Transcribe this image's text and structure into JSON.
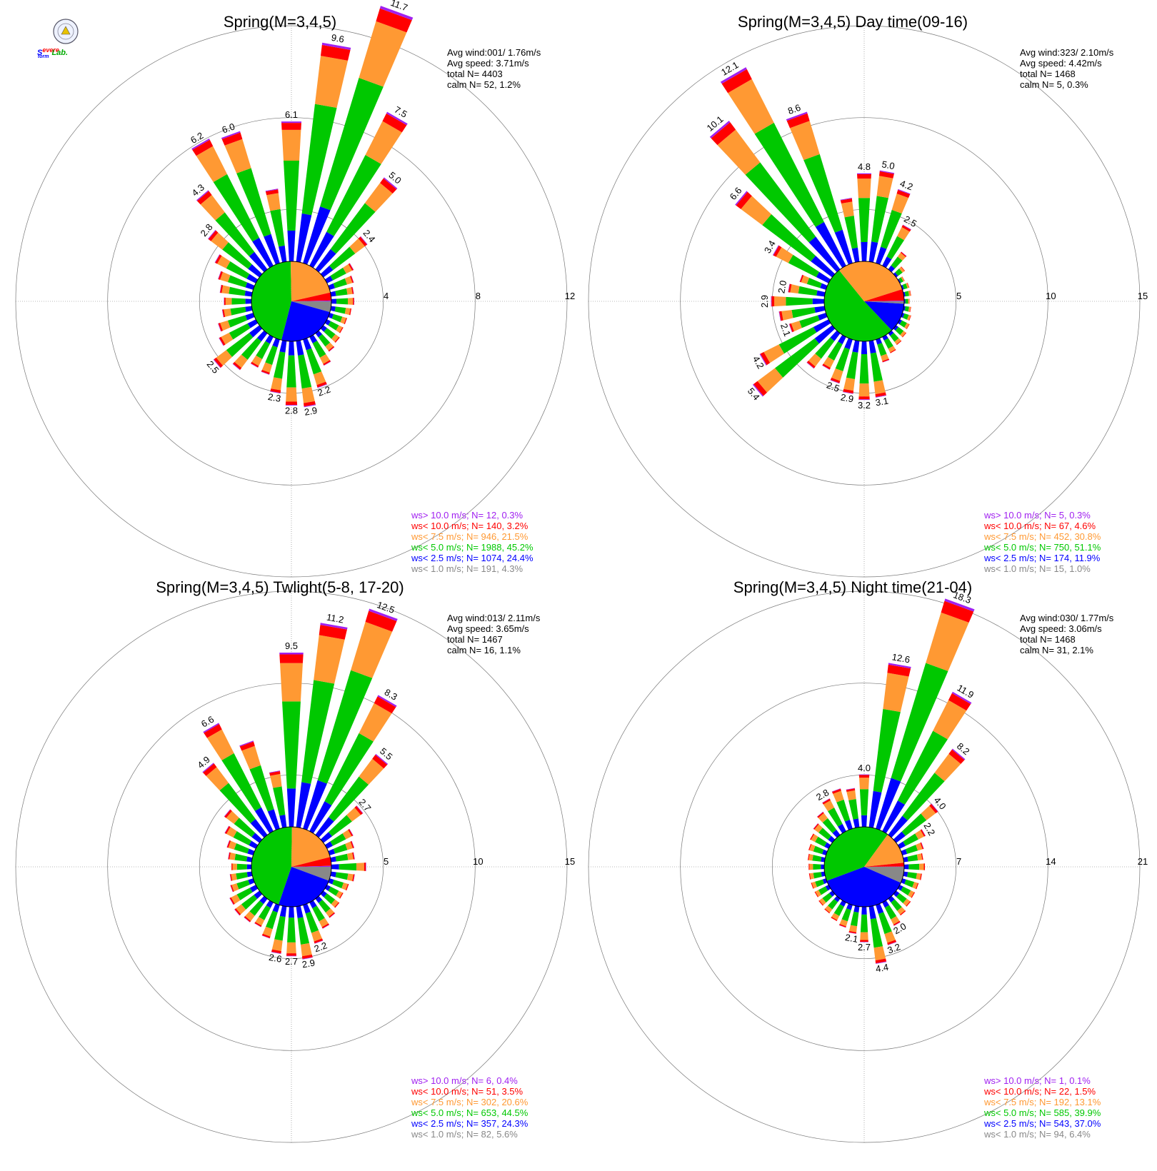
{
  "logo": {
    "text_s": "S",
    "text_severe": "evere",
    "text_storm": "torm",
    "text_lab": "Lab."
  },
  "chart_data": [
    {
      "type": "windrose",
      "title": "Spring(M=3,4,5)",
      "rmax": 12,
      "rings": [
        4,
        8,
        12
      ],
      "ring_labels": [
        "4",
        "8",
        "12"
      ],
      "stats": {
        "avg_wind": "Avg wind:001/ 1.76m/s",
        "avg_speed": "Avg speed: 3.71m/s",
        "total": "total N=       4403",
        "calm": "calm N=     52,   1.2%"
      },
      "directions": [
        0,
        10,
        20,
        30,
        40,
        50,
        60,
        70,
        80,
        90,
        100,
        110,
        120,
        130,
        140,
        150,
        160,
        170,
        180,
        190,
        200,
        210,
        220,
        230,
        240,
        250,
        260,
        270,
        280,
        290,
        300,
        310,
        320,
        330,
        340,
        350
      ],
      "totals": [
        6.1,
        9.6,
        11.7,
        7.5,
        5.0,
        2.4,
        1.3,
        1.1,
        1.0,
        1.0,
        0.9,
        0.8,
        0.8,
        0.9,
        1.0,
        1.4,
        2.2,
        2.9,
        2.8,
        2.3,
        1.6,
        1.5,
        2.0,
        2.5,
        1.8,
        1.6,
        1.3,
        1.2,
        1.4,
        1.6,
        2.0,
        2.8,
        4.3,
        6.2,
        6.0,
        3.2
      ],
      "labels": {
        "0": "6.1",
        "10": "9.6",
        "20": "11.7",
        "30": "7.5",
        "40": "5.0",
        "50": "2.4",
        "160": "2.2",
        "170": "2.9",
        "180": "2.8",
        "190": "2.3",
        "230": "2.5",
        "310": "2.8",
        "320": "4.3",
        "330": "6.2",
        "340": "6.0"
      },
      "pie": [
        4.3,
        24.4,
        45.2,
        21.5,
        3.2,
        0.3
      ],
      "legend": [
        {
          "text": "ws> 10.0 m/s; N=   12,  0.3%",
          "color": "#a020f0"
        },
        {
          "text": "ws< 10.0 m/s; N=  140,  3.2%",
          "color": "#ff0000"
        },
        {
          "text": "ws<  7.5 m/s; N=  946, 21.5%",
          "color": "#ff9933"
        },
        {
          "text": "ws<  5.0 m/s; N= 1988, 45.2%",
          "color": "#00c800"
        },
        {
          "text": "ws<  2.5 m/s; N= 1074, 24.4%",
          "color": "#0000ff"
        },
        {
          "text": "ws<  1.0 m/s; N=  191,  4.3%",
          "color": "#888888"
        }
      ]
    },
    {
      "type": "windrose",
      "title": "Spring(M=3,4,5) Day time(09-16)",
      "rmax": 15,
      "rings": [
        5,
        10,
        15
      ],
      "ring_labels": [
        "5",
        "10",
        "15"
      ],
      "stats": {
        "avg_wind": "Avg wind:323/ 2.10m/s",
        "avg_speed": "Avg speed: 4.42m/s",
        "total": "total N=       1468",
        "calm": "calm N=      5,   0.3%"
      },
      "directions": [
        0,
        10,
        20,
        30,
        40,
        50,
        60,
        70,
        80,
        90,
        100,
        110,
        120,
        130,
        140,
        150,
        160,
        170,
        180,
        190,
        200,
        210,
        220,
        230,
        240,
        250,
        260,
        270,
        280,
        290,
        300,
        310,
        320,
        330,
        340,
        350
      ],
      "totals": [
        4.8,
        5.0,
        4.2,
        2.5,
        1.2,
        0.6,
        0.3,
        0.4,
        0.4,
        0.3,
        0.4,
        0.5,
        0.6,
        0.7,
        0.8,
        1.0,
        1.3,
        3.1,
        3.2,
        2.9,
        2.5,
        2.0,
        2.4,
        5.4,
        4.2,
        2.1,
        2.5,
        2.9,
        2.0,
        1.5,
        3.4,
        6.6,
        10.1,
        12.1,
        8.6,
        3.5
      ],
      "labels": {
        "0": "4.8",
        "10": "5.0",
        "20": "4.2",
        "30": "2.5",
        "170": "3.1",
        "180": "3.2",
        "190": "2.9",
        "200": "2.5",
        "230": "5.4",
        "240": "4.2",
        "250": "2.1",
        "270": "2.9",
        "280": "2.0",
        "300": "3.4",
        "310": "6.6",
        "320": "10.1",
        "330": "12.1",
        "340": "8.6"
      },
      "pie": [
        1.0,
        11.9,
        51.1,
        30.8,
        4.6,
        0.3
      ],
      "legend": [
        {
          "text": "ws> 10.0 m/s; N=    5,  0.3%",
          "color": "#a020f0"
        },
        {
          "text": "ws< 10.0 m/s; N=   67,  4.6%",
          "color": "#ff0000"
        },
        {
          "text": "ws<  7.5 m/s; N=  452, 30.8%",
          "color": "#ff9933"
        },
        {
          "text": "ws<  5.0 m/s; N=  750, 51.1%",
          "color": "#00c800"
        },
        {
          "text": "ws<  2.5 m/s; N=  174, 11.9%",
          "color": "#0000ff"
        },
        {
          "text": "ws<  1.0 m/s; N=   15,  1.0%",
          "color": "#888888"
        }
      ]
    },
    {
      "type": "windrose",
      "title": "Spring(M=3,4,5) Twlight(5-8, 17-20)",
      "rmax": 15,
      "rings": [
        5,
        10,
        15
      ],
      "ring_labels": [
        "5",
        "10",
        "15"
      ],
      "stats": {
        "avg_wind": "Avg wind:013/ 2.11m/s",
        "avg_speed": "Avg speed: 3.65m/s",
        "total": "total N=       1467",
        "calm": "calm N=     16,   1.1%"
      },
      "directions": [
        0,
        10,
        20,
        30,
        40,
        50,
        60,
        70,
        80,
        90,
        100,
        110,
        120,
        130,
        140,
        150,
        160,
        170,
        180,
        190,
        200,
        210,
        220,
        230,
        240,
        250,
        260,
        270,
        280,
        290,
        300,
        310,
        320,
        330,
        340,
        350
      ],
      "totals": [
        9.5,
        11.2,
        12.5,
        8.3,
        5.5,
        2.7,
        1.6,
        1.4,
        1.3,
        1.9,
        1.3,
        1.1,
        1.0,
        1.1,
        1.3,
        1.6,
        2.2,
        2.9,
        2.7,
        2.6,
        1.9,
        1.5,
        1.6,
        1.7,
        1.6,
        1.3,
        1.2,
        1.1,
        1.3,
        1.5,
        1.9,
        2.4,
        4.9,
        6.6,
        5.0,
        3.1
      ],
      "labels": {
        "0": "9.5",
        "10": "11.2",
        "20": "12.5",
        "30": "8.3",
        "40": "5.5",
        "50": "2.7",
        "160": "2.2",
        "170": "2.9",
        "180": "2.7",
        "190": "2.6",
        "320": "4.9",
        "330": "6.6"
      },
      "pie": [
        5.6,
        24.3,
        44.5,
        20.6,
        3.5,
        0.4
      ],
      "legend": [
        {
          "text": "ws> 10.0 m/s; N=    6,  0.4%",
          "color": "#a020f0"
        },
        {
          "text": "ws< 10.0 m/s; N=   51,  3.5%",
          "color": "#ff0000"
        },
        {
          "text": "ws<  7.5 m/s; N=  302, 20.6%",
          "color": "#ff9933"
        },
        {
          "text": "ws<  5.0 m/s; N=  653, 44.5%",
          "color": "#00c800"
        },
        {
          "text": "ws<  2.5 m/s; N=  357, 24.3%",
          "color": "#0000ff"
        },
        {
          "text": "ws<  1.0 m/s; N=   82,  5.6%",
          "color": "#888888"
        }
      ]
    },
    {
      "type": "windrose",
      "title": "Spring(M=3,4,5) Night time(21-04)",
      "rmax": 21,
      "rings": [
        7,
        14,
        21
      ],
      "ring_labels": [
        "7",
        "14",
        "21"
      ],
      "stats": {
        "avg_wind": "Avg wind:030/ 1.77m/s",
        "avg_speed": "Avg speed: 3.06m/s",
        "total": "total N=       1468",
        "calm": "calm N=     31,   2.1%"
      },
      "directions": [
        0,
        10,
        20,
        30,
        40,
        50,
        60,
        70,
        80,
        90,
        100,
        110,
        120,
        130,
        140,
        150,
        160,
        170,
        180,
        190,
        200,
        210,
        220,
        230,
        240,
        250,
        260,
        270,
        280,
        290,
        300,
        310,
        320,
        330,
        340,
        350
      ],
      "totals": [
        4.0,
        12.6,
        18.3,
        11.9,
        8.2,
        4.0,
        2.2,
        1.7,
        1.5,
        1.6,
        1.4,
        1.3,
        1.3,
        1.4,
        1.6,
        2.0,
        3.2,
        4.4,
        2.7,
        2.1,
        1.8,
        1.6,
        1.4,
        1.3,
        1.2,
        1.2,
        1.2,
        1.2,
        1.3,
        1.4,
        1.6,
        1.8,
        2.2,
        2.8,
        3.2,
        3.0
      ],
      "labels": {
        "0": "4.0",
        "10": "12.6",
        "20": "18.3",
        "30": "11.9",
        "40": "8.2",
        "50": "4.0",
        "60": "2.2",
        "150": "2.0",
        "160": "3.2",
        "170": "4.4",
        "180": "2.7",
        "190": "2.1",
        "330": "2.8"
      },
      "pie": [
        6.4,
        37.0,
        39.9,
        13.1,
        1.5,
        0.1
      ],
      "legend": [
        {
          "text": "ws> 10.0 m/s; N=    1,  0.1%",
          "color": "#a020f0"
        },
        {
          "text": "ws< 10.0 m/s; N=   22,  1.5%",
          "color": "#ff0000"
        },
        {
          "text": "ws<  7.5 m/s; N=  192, 13.1%",
          "color": "#ff9933"
        },
        {
          "text": "ws<  5.0 m/s; N=  585, 39.9%",
          "color": "#00c800"
        },
        {
          "text": "ws<  2.5 m/s; N=  543, 37.0%",
          "color": "#0000ff"
        },
        {
          "text": "ws<  1.0 m/s; N=   94,  6.4%",
          "color": "#888888"
        }
      ]
    }
  ],
  "colors": {
    "calm": "#888888",
    "lt25": "#0000ff",
    "lt50": "#00c800",
    "lt75": "#ff9933",
    "lt100": "#ff0000",
    "gt100": "#a020f0",
    "grid": "#777777",
    "pie_outline": "#000000"
  }
}
